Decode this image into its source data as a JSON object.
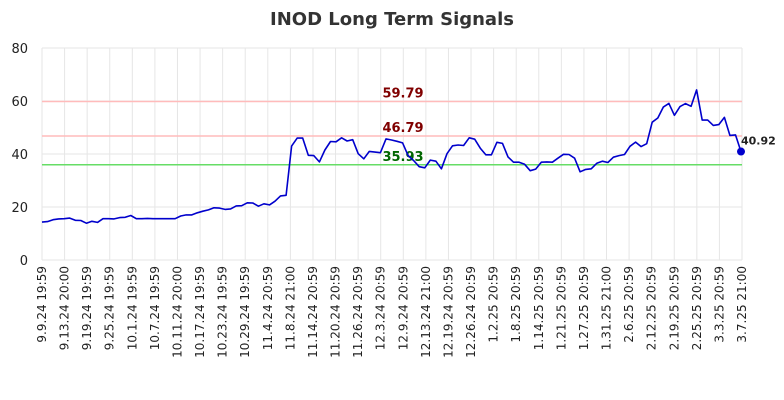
{
  "chart_data": {
    "type": "line",
    "title": "INOD Long Term Signals",
    "xlabel": "",
    "ylabel": "",
    "ylim": [
      0,
      80
    ],
    "yticks": [
      0,
      20,
      40,
      60,
      80
    ],
    "grid": true,
    "x_tick_labels": [
      "9.9.24 19:59",
      "9.13.24 20:00",
      "9.19.24 19:59",
      "9.25.24 19:59",
      "10.1.24 19:59",
      "10.7.24 19:59",
      "10.11.24 20:00",
      "10.17.24 19:59",
      "10.23.24 19:59",
      "10.29.24 19:59",
      "11.4.24 20:59",
      "11.8.24 21:00",
      "11.14.24 20:59",
      "11.20.24 20:59",
      "11.26.24 20:59",
      "12.3.24 20:59",
      "12.9.24 20:59",
      "12.13.24 21:00",
      "12.19.24 20:59",
      "12.26.24 20:59",
      "1.2.25 20:59",
      "1.8.25 20:59",
      "1.14.25 20:59",
      "1.21.25 20:59",
      "1.27.25 20:59",
      "1.31.25 21:00",
      "2.6.25 20:59",
      "2.12.25 20:59",
      "2.19.25 20:59",
      "2.25.25 20:59",
      "3.3.25 20:59",
      "3.7.25 21:00"
    ],
    "series": [
      {
        "color": "#0000cc",
        "values": [
          14.3,
          14.5,
          15.2,
          15.5,
          15.6,
          15.8,
          15.0,
          14.9,
          13.9,
          14.6,
          14.2,
          15.6,
          15.6,
          15.5,
          16.0,
          16.1,
          16.8,
          15.6,
          15.6,
          15.7,
          15.6,
          15.6,
          15.6,
          15.6,
          15.6,
          16.6,
          17.0,
          17.0,
          17.8,
          18.4,
          18.9,
          19.7,
          19.6,
          19.1,
          19.3,
          20.4,
          20.5,
          21.6,
          21.5,
          20.3,
          21.2,
          20.8,
          22.2,
          24.2,
          24.4,
          43.0,
          46.0,
          46.0,
          39.5,
          39.4,
          37.0,
          41.5,
          44.7,
          44.6,
          46.1,
          44.9,
          45.4,
          40.1,
          38.2,
          41.0,
          40.7,
          40.5,
          45.7,
          45.3,
          44.8,
          44.2,
          39.4,
          37.5,
          35.2,
          34.8,
          37.7,
          37.3,
          34.4,
          40.1,
          43.1,
          43.4,
          43.2,
          46.1,
          45.6,
          42.2,
          39.7,
          39.7,
          44.4,
          44.0,
          38.9,
          36.9,
          36.9,
          36.1,
          33.7,
          34.3,
          36.9,
          37.0,
          36.9,
          38.4,
          39.9,
          39.8,
          38.4,
          33.3,
          34.2,
          34.4,
          36.5,
          37.3,
          36.8,
          38.8,
          39.4,
          39.8,
          42.9,
          44.5,
          42.8,
          43.9,
          52.0,
          53.6,
          57.7,
          59.1,
          54.6,
          57.9,
          59.0,
          58.0,
          64.2,
          52.8,
          52.8,
          50.8,
          51.1,
          53.8,
          47.0,
          47.2,
          40.92
        ]
      }
    ],
    "levels": [
      {
        "value": 59.79,
        "label": "59.79",
        "line_color": "#ffbbbb",
        "text_color": "#800000"
      },
      {
        "value": 46.79,
        "label": "46.79",
        "line_color": "#ffbbbb",
        "text_color": "#800000"
      },
      {
        "value": 35.93,
        "label": "35.93",
        "line_color": "#66dd66",
        "text_color": "#006600"
      }
    ],
    "last_value": 40.92,
    "last_value_label": "40.92"
  }
}
